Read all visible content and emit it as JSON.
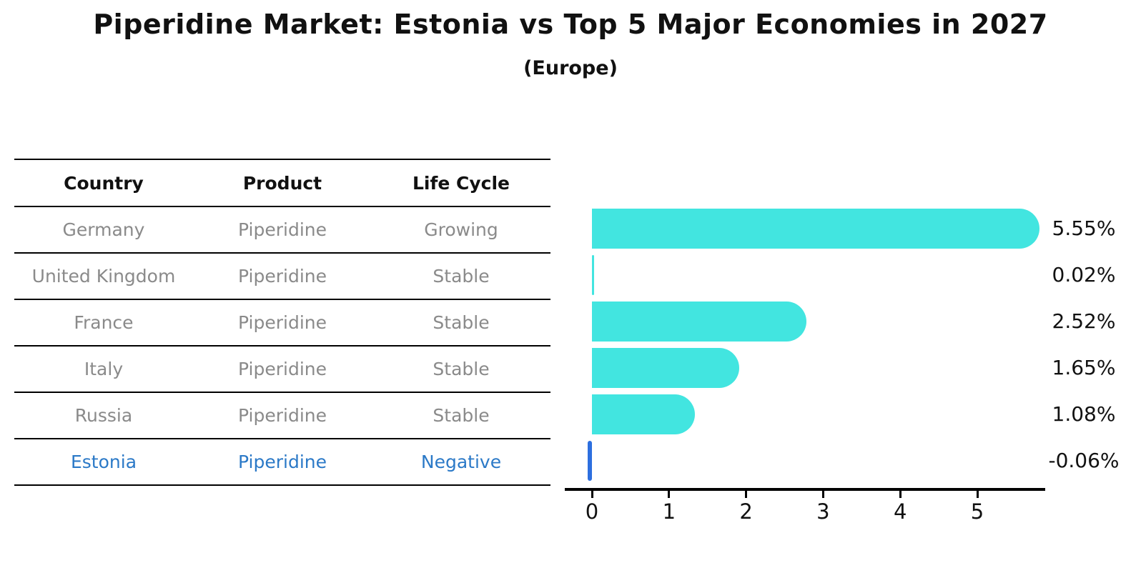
{
  "chart_data": {
    "type": "bar",
    "orientation": "horizontal",
    "title": "Piperidine Market: Estonia vs Top 5 Major Economies in 2027",
    "subtitle": "(Europe)",
    "categories": [
      "Germany",
      "United Kingdom",
      "France",
      "Italy",
      "Russia",
      "Estonia"
    ],
    "values": [
      5.55,
      0.02,
      2.52,
      1.65,
      1.08,
      -0.06
    ],
    "value_labels": [
      "5.55%",
      "0.02%",
      "2.52%",
      "1.65%",
      "1.08%",
      "-0.06%"
    ],
    "x_ticks": [
      "0",
      "1",
      "2",
      "3",
      "4",
      "5"
    ],
    "xlim": [
      -0.25,
      5.9
    ],
    "grid": false,
    "legend": false,
    "bar_color": "#42E5E0",
    "highlight_index": 5,
    "highlight_bar_color": "#2D6FDF"
  },
  "table": {
    "headers": [
      "Country",
      "Product",
      "Life Cycle"
    ],
    "rows": [
      {
        "country": "Germany",
        "product": "Piperidine",
        "life_cycle": "Growing",
        "highlight": false
      },
      {
        "country": "United Kingdom",
        "product": "Piperidine",
        "life_cycle": "Stable",
        "highlight": false
      },
      {
        "country": "France",
        "product": "Piperidine",
        "life_cycle": "Stable",
        "highlight": false
      },
      {
        "country": "Italy",
        "product": "Piperidine",
        "life_cycle": "Stable",
        "highlight": false
      },
      {
        "country": "Russia",
        "product": "Piperidine",
        "life_cycle": "Stable",
        "highlight": false
      },
      {
        "country": "Estonia",
        "product": "Piperidine",
        "life_cycle": "Negative",
        "highlight": true
      }
    ]
  },
  "colors": {
    "bar": "#42E5E0",
    "highlight_bar": "#2D6FDF",
    "highlight_text": "#2b79c7",
    "row_text": "#8a8a8a",
    "axis": "#000000"
  }
}
